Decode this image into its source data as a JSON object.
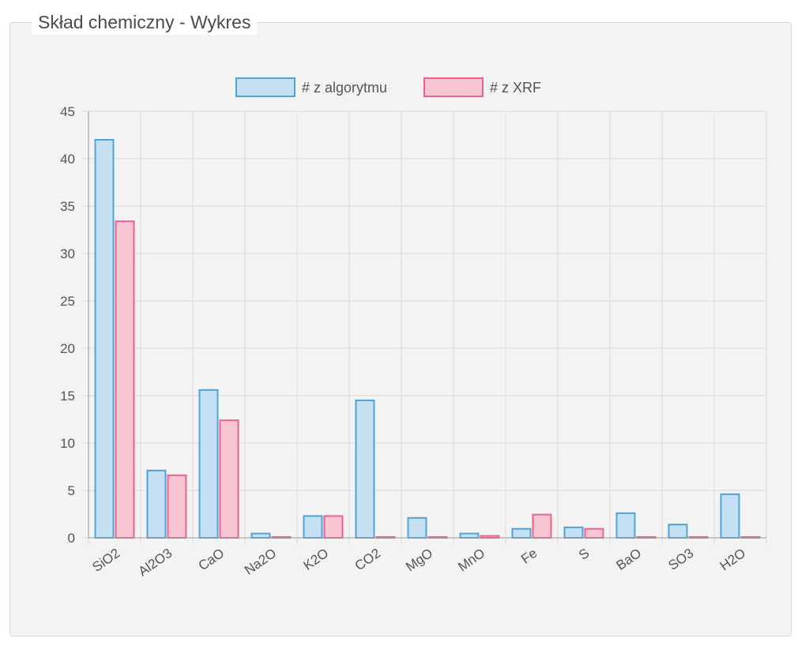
{
  "panel": {
    "title": "Skład chemiczny - Wykres"
  },
  "colors": {
    "series_0_fill": "#c4e0f2",
    "series_0_stroke": "#4ea3dc",
    "series_1_fill": "#f8c6d3",
    "series_1_stroke": "#ef6189",
    "grid": "#d9d9d9",
    "axis": "#999999"
  },
  "chart_data": {
    "type": "bar",
    "title": "",
    "xlabel": "",
    "ylabel": "",
    "ylim": [
      0,
      45
    ],
    "yticks": [
      "0",
      "5",
      "10",
      "15",
      "20",
      "25",
      "30",
      "35",
      "40",
      "45"
    ],
    "grid": true,
    "legend_position": "top",
    "categories": [
      "SiO2",
      "Al2O3",
      "CaO",
      "Na2O",
      "K2O",
      "CO2",
      "MgO",
      "MnO",
      "Fe",
      "S",
      "BaO",
      "SO3",
      "H2O"
    ],
    "series": [
      {
        "name": "# z algorytmu",
        "values": [
          42,
          7.1,
          15.6,
          0.45,
          2.3,
          14.5,
          2.1,
          0.45,
          0.95,
          1.1,
          2.6,
          1.4,
          4.6
        ]
      },
      {
        "name": "# z XRF",
        "values": [
          33.4,
          6.6,
          12.4,
          0.05,
          2.3,
          0.05,
          0.05,
          0.2,
          2.45,
          0.95,
          0.05,
          0.05,
          0.05
        ]
      }
    ]
  }
}
